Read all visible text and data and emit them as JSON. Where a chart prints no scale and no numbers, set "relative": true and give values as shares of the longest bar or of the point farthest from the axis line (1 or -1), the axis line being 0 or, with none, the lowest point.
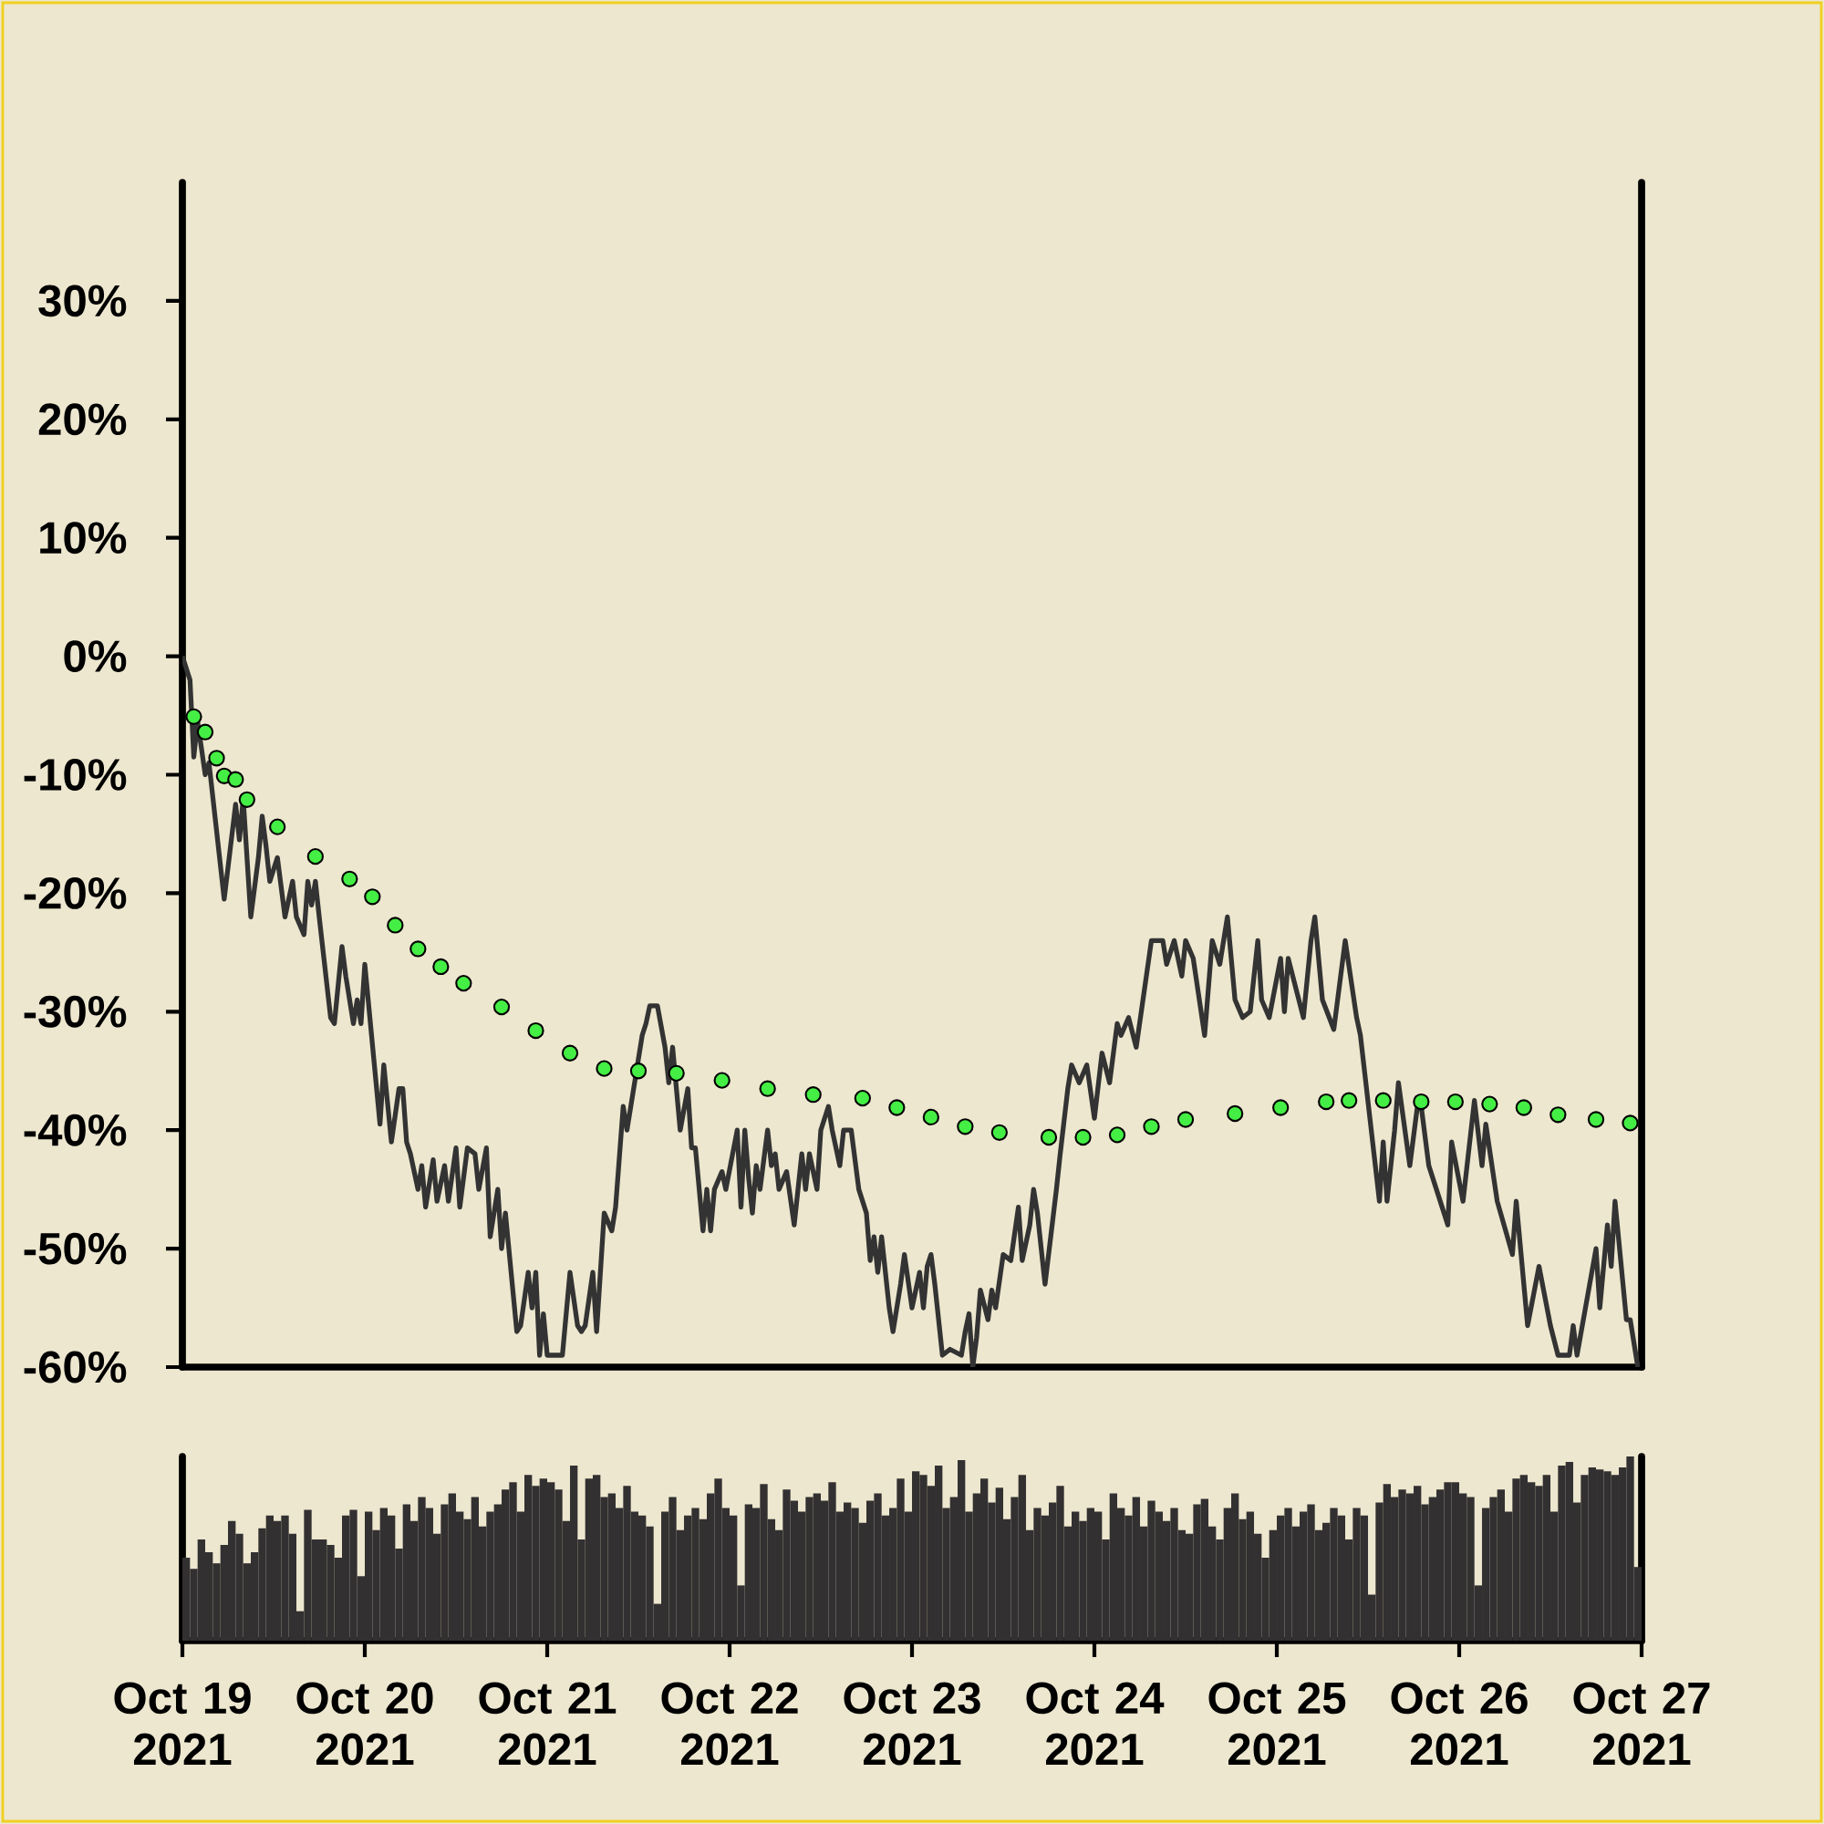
{
  "chart_data": [
    {
      "type": "line",
      "xlim": [
        "2021-10-19",
        "2021-10-27"
      ],
      "ylim": [
        -60,
        40
      ],
      "tick_labels": "y",
      "yticks": [
        {
          "value": -60,
          "label": "-60%"
        },
        {
          "value": -50,
          "label": "-50%"
        },
        {
          "value": -40,
          "label": "-40%"
        },
        {
          "value": -30,
          "label": "-30%"
        },
        {
          "value": -20,
          "label": "-20%"
        },
        {
          "value": -10,
          "label": "-10%"
        },
        {
          "value": 0,
          "label": "0%"
        },
        {
          "value": 10,
          "label": "10%"
        },
        {
          "value": 20,
          "label": "20%"
        },
        {
          "value": 30,
          "label": "30%"
        }
      ],
      "series": [
        {
          "type": "line",
          "color": "#333333",
          "x": [
            "2021-10-19T00:00",
            "2021-10-19T01:00",
            "2021-10-19T01:30",
            "2021-10-19T02:00",
            "2021-10-19T03:00",
            "2021-10-19T03:30",
            "2021-10-19T05:30",
            "2021-10-19T07:00",
            "2021-10-19T07:30",
            "2021-10-19T08:00",
            "2021-10-19T09:00",
            "2021-10-19T10:00",
            "2021-10-19T10:30",
            "2021-10-19T11:00",
            "2021-10-19T11:30",
            "2021-10-19T12:30",
            "2021-10-19T13:30",
            "2021-10-19T14:30",
            "2021-10-19T15:00",
            "2021-10-19T16:00",
            "2021-10-19T16:30",
            "2021-10-19T17:00",
            "2021-10-19T17:30",
            "2021-10-19T18:00",
            "2021-10-19T19:30",
            "2021-10-19T20:00",
            "2021-10-19T21:00",
            "2021-10-19T21:30",
            "2021-10-19T22:30",
            "2021-10-19T23:00",
            "2021-10-19T23:30",
            "2021-10-20T00:00",
            "2021-10-20T02:00",
            "2021-10-20T02:30",
            "2021-10-20T03:30",
            "2021-10-20T04:30",
            "2021-10-20T05:00",
            "2021-10-20T05:30",
            "2021-10-20T06:00",
            "2021-10-20T07:00",
            "2021-10-20T07:30",
            "2021-10-20T08:00",
            "2021-10-20T09:00",
            "2021-10-20T09:30",
            "2021-10-20T10:30",
            "2021-10-20T11:00",
            "2021-10-20T12:00",
            "2021-10-20T12:30",
            "2021-10-20T13:30",
            "2021-10-20T14:30",
            "2021-10-20T15:00",
            "2021-10-20T16:00",
            "2021-10-20T16:30",
            "2021-10-20T17:30",
            "2021-10-20T18:00",
            "2021-10-20T18:30",
            "2021-10-20T20:00",
            "2021-10-20T20:30",
            "2021-10-20T21:30",
            "2021-10-20T22:00",
            "2021-10-20T22:30",
            "2021-10-20T23:00",
            "2021-10-20T23:30",
            "2021-10-21T00:00",
            "2021-10-21T02:00",
            "2021-10-21T03:00",
            "2021-10-21T04:00",
            "2021-10-21T04:30",
            "2021-10-21T05:00",
            "2021-10-21T06:00",
            "2021-10-21T06:30",
            "2021-10-21T07:30",
            "2021-10-21T08:30",
            "2021-10-21T09:00",
            "2021-10-21T10:00",
            "2021-10-21T10:30",
            "2021-10-21T12:30",
            "2021-10-21T13:00",
            "2021-10-21T13:30",
            "2021-10-21T14:30",
            "2021-10-21T15:30",
            "2021-10-21T16:00",
            "2021-10-21T16:30",
            "2021-10-21T17:00",
            "2021-10-21T17:30",
            "2021-10-21T18:30",
            "2021-10-21T19:00",
            "2021-10-21T19:30",
            "2021-10-21T20:30",
            "2021-10-21T21:00",
            "2021-10-21T21:30",
            "2021-10-21T22:00",
            "2021-10-21T23:00",
            "2021-10-21T23:30",
            "2021-10-22T01:00",
            "2021-10-22T01:30",
            "2021-10-22T02:00",
            "2021-10-22T02:30",
            "2021-10-22T03:00",
            "2021-10-22T03:30",
            "2021-10-22T04:00",
            "2021-10-22T05:00",
            "2021-10-22T05:30",
            "2021-10-22T06:00",
            "2021-10-22T06:30",
            "2021-10-22T07:30",
            "2021-10-22T08:30",
            "2021-10-22T09:30",
            "2021-10-22T10:00",
            "2021-10-22T10:30",
            "2021-10-22T11:30",
            "2021-10-22T12:00",
            "2021-10-22T13:00",
            "2021-10-22T13:30",
            "2021-10-22T14:30",
            "2021-10-22T15:00",
            "2021-10-22T16:00",
            "2021-10-22T17:00",
            "2021-10-22T18:00",
            "2021-10-22T18:30",
            "2021-10-22T19:00",
            "2021-10-22T19:30",
            "2021-10-22T20:00",
            "2021-10-22T21:00",
            "2021-10-22T21:30",
            "2021-10-22T22:30",
            "2021-10-22T23:00",
            "2021-10-23T00:00",
            "2021-10-23T01:00",
            "2021-10-23T01:30",
            "2021-10-23T02:00",
            "2021-10-23T02:30",
            "2021-10-23T03:00",
            "2021-10-23T04:00",
            "2021-10-23T05:00",
            "2021-10-23T06:30",
            "2021-10-23T07:00",
            "2021-10-23T07:30",
            "2021-10-23T08:00",
            "2021-10-23T08:30",
            "2021-10-23T09:00",
            "2021-10-23T10:00",
            "2021-10-23T10:30",
            "2021-10-23T11:00",
            "2021-10-23T12:00",
            "2021-10-23T13:00",
            "2021-10-23T14:00",
            "2021-10-23T14:30",
            "2021-10-23T15:30",
            "2021-10-23T16:00",
            "2021-10-23T16:30",
            "2021-10-23T17:30",
            "2021-10-23T19:00",
            "2021-10-23T19:30",
            "2021-10-23T20:30",
            "2021-10-23T21:00",
            "2021-10-23T22:00",
            "2021-10-23T23:00",
            "2021-10-24T00:00",
            "2021-10-24T01:00",
            "2021-10-24T02:00",
            "2021-10-24T03:00",
            "2021-10-24T03:30",
            "2021-10-24T04:30",
            "2021-10-24T05:30",
            "2021-10-24T07:30",
            "2021-10-24T09:00",
            "2021-10-24T09:30",
            "2021-10-24T10:30",
            "2021-10-24T11:30",
            "2021-10-24T12:00",
            "2021-10-24T13:00",
            "2021-10-24T14:30",
            "2021-10-24T15:30",
            "2021-10-24T16:30",
            "2021-10-24T17:30",
            "2021-10-24T18:30",
            "2021-10-24T19:30",
            "2021-10-24T20:30",
            "2021-10-24T21:30",
            "2021-10-24T22:00",
            "2021-10-24T23:00",
            "2021-10-25T00:30",
            "2021-10-25T01:00",
            "2021-10-25T01:30",
            "2021-10-25T03:30",
            "2021-10-25T04:30",
            "2021-10-25T05:00",
            "2021-10-25T06:00",
            "2021-10-25T07:30",
            "2021-10-25T09:00",
            "2021-10-25T10:30",
            "2021-10-25T11:00",
            "2021-10-25T13:30",
            "2021-10-25T14:00",
            "2021-10-25T14:30",
            "2021-10-25T15:30",
            "2021-10-25T16:00",
            "2021-10-25T17:30",
            "2021-10-25T18:30",
            "2021-10-25T19:00",
            "2021-10-25T20:00",
            "2021-10-25T21:00",
            "2021-10-25T22:30",
            "2021-10-25T23:00",
            "2021-10-26T00:30",
            "2021-10-26T02:00",
            "2021-10-26T03:00",
            "2021-10-26T03:30",
            "2021-10-26T05:00",
            "2021-10-26T07:00",
            "2021-10-26T07:30",
            "2021-10-26T09:00",
            "2021-10-26T10:30",
            "2021-10-26T12:00",
            "2021-10-26T13:00",
            "2021-10-26T14:30",
            "2021-10-26T15:00",
            "2021-10-26T15:30",
            "2021-10-26T18:00",
            "2021-10-26T18:30",
            "2021-10-26T19:30",
            "2021-10-26T20:00",
            "2021-10-26T20:30",
            "2021-10-26T22:00",
            "2021-10-26T22:30",
            "2021-10-26T23:30"
          ],
          "values": [
            0,
            -2,
            -8.5,
            -5.5,
            -10,
            -9,
            -20.5,
            -12.5,
            -15.5,
            -12,
            -22,
            -17,
            -13.5,
            -16,
            -19,
            -17,
            -22,
            -19,
            -22,
            -23.5,
            -19,
            -21,
            -19,
            -22,
            -30.5,
            -31,
            -24.5,
            -27,
            -31,
            -29,
            -31,
            -26,
            -39.5,
            -34.5,
            -41,
            -36.5,
            -36.5,
            -41,
            -42,
            -45,
            -43,
            -46.5,
            -42.5,
            -46,
            -43,
            -46,
            -41.5,
            -46.5,
            -41.5,
            -42,
            -45,
            -41.5,
            -49,
            -45,
            -50,
            -47,
            -57,
            -56.5,
            -52,
            -55,
            -52,
            -59,
            -55.5,
            -59,
            -59,
            -52,
            -56.5,
            -57,
            -56.5,
            -52,
            -57,
            -47,
            -48.5,
            -46.5,
            -38,
            -40,
            -32,
            -31,
            -29.5,
            -29.5,
            -33,
            -36,
            -33,
            -36.5,
            -40,
            -36.5,
            -41.5,
            -41.5,
            -48.5,
            -45,
            -48.5,
            -45,
            -43.5,
            -45,
            -40,
            -46.5,
            -40,
            -44,
            -47,
            -43,
            -45,
            -40,
            -43,
            -42,
            -45,
            -43.5,
            -48,
            -42,
            -45,
            -42,
            -45,
            -40,
            -38,
            -40,
            -43,
            -40,
            -40,
            -45,
            -47,
            -51,
            -49,
            -52,
            -49,
            -55,
            -57,
            -53,
            -50.5,
            -55,
            -52,
            -55,
            -51.5,
            -50.5,
            -53,
            -59,
            -58.5,
            -59,
            -57,
            -55.5,
            -60,
            -57.5,
            -53.5,
            -56,
            -53.5,
            -55,
            -50.5,
            -51,
            -46.5,
            -51,
            -48,
            -45,
            -47,
            -53,
            -45,
            -42,
            -36.5,
            -34.5,
            -36,
            -34.5,
            -39,
            -33.5,
            -36,
            -31,
            -32,
            -30.5,
            -33,
            -24,
            -24,
            -26,
            -24,
            -27,
            -24,
            -25.5,
            -32,
            -24,
            -26,
            -22,
            -29,
            -30.5,
            -30,
            -24,
            -29,
            -30.5,
            -25.5,
            -30,
            -25.5,
            -30.5,
            -24,
            -22,
            -29,
            -31.5,
            -24,
            -30.5,
            -32,
            -46,
            -41,
            -46,
            -40,
            -36,
            -43,
            -38,
            -38,
            -43,
            -45,
            -48,
            -41,
            -46,
            -37.5,
            -43,
            -39.5,
            -46,
            -50.5,
            -46,
            -56.5,
            -51.5,
            -56.5,
            -59,
            -59,
            -56.5,
            -59,
            -50,
            -55,
            -48,
            -51.5,
            -46,
            -56,
            -56,
            -60
          ]
        },
        {
          "type": "scatter",
          "marker": "circle",
          "color": "#44ee44",
          "x": [
            "2021-10-19T01:30",
            "2021-10-19T03:00",
            "2021-10-19T04:30",
            "2021-10-19T05:30",
            "2021-10-19T07:00",
            "2021-10-19T08:30",
            "2021-10-19T12:30",
            "2021-10-19T17:30",
            "2021-10-19T22:00",
            "2021-10-20T01:00",
            "2021-10-20T04:00",
            "2021-10-20T07:00",
            "2021-10-20T10:00",
            "2021-10-20T13:00",
            "2021-10-20T18:00",
            "2021-10-20T22:30",
            "2021-10-21T03:00",
            "2021-10-21T07:30",
            "2021-10-21T12:00",
            "2021-10-21T17:00",
            "2021-10-21T23:00",
            "2021-10-22T05:00",
            "2021-10-22T11:00",
            "2021-10-22T17:30",
            "2021-10-22T22:00",
            "2021-10-23T02:30",
            "2021-10-23T07:00",
            "2021-10-23T11:30",
            "2021-10-23T18:00",
            "2021-10-23T22:30",
            "2021-10-24T03:00",
            "2021-10-24T07:30",
            "2021-10-24T12:00",
            "2021-10-24T18:30",
            "2021-10-25T00:30",
            "2021-10-25T06:30",
            "2021-10-25T09:30",
            "2021-10-25T14:00",
            "2021-10-25T19:00",
            "2021-10-25T23:30",
            "2021-10-26T04:00",
            "2021-10-26T08:30",
            "2021-10-26T13:00",
            "2021-10-26T18:00",
            "2021-10-26T22:30"
          ],
          "values": [
            -5.1,
            -6.4,
            -8.6,
            -10.1,
            -10.4,
            -12.1,
            -14.4,
            -16.9,
            -18.8,
            -20.3,
            -22.7,
            -24.7,
            -26.2,
            -27.6,
            -29.6,
            -31.6,
            -33.5,
            -34.8,
            -35,
            -35.2,
            -35.8,
            -36.5,
            -37,
            -37.3,
            -38.1,
            -38.9,
            -39.7,
            -40.2,
            -40.6,
            -40.6,
            -40.4,
            -39.7,
            -39.1,
            -38.6,
            -38.1,
            -37.6,
            -37.5,
            -37.5,
            -37.6,
            -37.6,
            -37.8,
            -38.1,
            -38.7,
            -39.1,
            -39.4
          ]
        }
      ]
    },
    {
      "type": "bar",
      "relative": true,
      "color": "#333031",
      "xlim": [
        "2021-10-19",
        "2021-10-27"
      ],
      "tick_labels": "x",
      "xticks": [
        {
          "value": "2021-10-19",
          "label": "Oct 19 2021"
        },
        {
          "value": "2021-10-20",
          "label": "Oct 20 2021"
        },
        {
          "value": "2021-10-21",
          "label": "Oct 21 2021"
        },
        {
          "value": "2021-10-22",
          "label": "Oct 22 2021"
        },
        {
          "value": "2021-10-23",
          "label": "Oct 23 2021"
        },
        {
          "value": "2021-10-24",
          "label": "Oct 24 2021"
        },
        {
          "value": "2021-10-25",
          "label": "Oct 25 2021"
        },
        {
          "value": "2021-10-26",
          "label": "Oct 26 2021"
        },
        {
          "value": "2021-10-27",
          "label": "Oct 27 2021"
        }
      ],
      "x": [
        "2021-10-19T00:30",
        "2021-10-19T01:30",
        "2021-10-19T02:30",
        "2021-10-19T03:30",
        "2021-10-19T04:30",
        "2021-10-19T05:30",
        "2021-10-19T06:30",
        "2021-10-19T07:30",
        "2021-10-19T08:30",
        "2021-10-19T09:30",
        "2021-10-19T10:30",
        "2021-10-19T11:30",
        "2021-10-19T12:30",
        "2021-10-19T13:30",
        "2021-10-19T14:30",
        "2021-10-19T15:30",
        "2021-10-19T16:30",
        "2021-10-19T17:30",
        "2021-10-19T18:30",
        "2021-10-19T19:30",
        "2021-10-19T20:30",
        "2021-10-19T21:30",
        "2021-10-19T22:30",
        "2021-10-19T23:30",
        "2021-10-20T00:30",
        "2021-10-20T01:30",
        "2021-10-20T02:30",
        "2021-10-20T03:30",
        "2021-10-20T04:30",
        "2021-10-20T05:30",
        "2021-10-20T06:30",
        "2021-10-20T07:30",
        "2021-10-20T08:30",
        "2021-10-20T09:30",
        "2021-10-20T10:30",
        "2021-10-20T11:30",
        "2021-10-20T12:30",
        "2021-10-20T13:30",
        "2021-10-20T14:30",
        "2021-10-20T15:30",
        "2021-10-20T16:30",
        "2021-10-20T17:30",
        "2021-10-20T18:30",
        "2021-10-20T19:30",
        "2021-10-20T20:30",
        "2021-10-20T21:30",
        "2021-10-20T22:30",
        "2021-10-20T23:30",
        "2021-10-21T00:30",
        "2021-10-21T01:30",
        "2021-10-21T02:30",
        "2021-10-21T03:30",
        "2021-10-21T04:30",
        "2021-10-21T05:30",
        "2021-10-21T06:30",
        "2021-10-21T07:30",
        "2021-10-21T08:30",
        "2021-10-21T09:30",
        "2021-10-21T10:30",
        "2021-10-21T11:30",
        "2021-10-21T12:30",
        "2021-10-21T13:30",
        "2021-10-21T14:30",
        "2021-10-21T15:30",
        "2021-10-21T16:30",
        "2021-10-21T17:30",
        "2021-10-21T18:30",
        "2021-10-21T19:30",
        "2021-10-21T20:30",
        "2021-10-21T21:30",
        "2021-10-21T22:30",
        "2021-10-21T23:30",
        "2021-10-22T00:30",
        "2021-10-22T01:30",
        "2021-10-22T02:30",
        "2021-10-22T03:30",
        "2021-10-22T04:30",
        "2021-10-22T05:30",
        "2021-10-22T06:30",
        "2021-10-22T07:30",
        "2021-10-22T08:30",
        "2021-10-22T09:30",
        "2021-10-22T10:30",
        "2021-10-22T11:30",
        "2021-10-22T12:30",
        "2021-10-22T13:30",
        "2021-10-22T14:30",
        "2021-10-22T15:30",
        "2021-10-22T16:30",
        "2021-10-22T17:30",
        "2021-10-22T18:30",
        "2021-10-22T19:30",
        "2021-10-22T20:30",
        "2021-10-22T21:30",
        "2021-10-22T22:30",
        "2021-10-22T23:30",
        "2021-10-23T00:30",
        "2021-10-23T01:30",
        "2021-10-23T02:30",
        "2021-10-23T03:30",
        "2021-10-23T04:30",
        "2021-10-23T05:30",
        "2021-10-23T06:30",
        "2021-10-23T07:30",
        "2021-10-23T08:30",
        "2021-10-23T09:30",
        "2021-10-23T10:30",
        "2021-10-23T11:30",
        "2021-10-23T12:30",
        "2021-10-23T13:30",
        "2021-10-23T14:30",
        "2021-10-23T15:30",
        "2021-10-23T16:30",
        "2021-10-23T17:30",
        "2021-10-23T18:30",
        "2021-10-23T19:30",
        "2021-10-23T20:30",
        "2021-10-23T21:30",
        "2021-10-23T22:30",
        "2021-10-23T23:30",
        "2021-10-24T00:30",
        "2021-10-24T01:30",
        "2021-10-24T02:30",
        "2021-10-24T03:30",
        "2021-10-24T04:30",
        "2021-10-24T05:30",
        "2021-10-24T06:30",
        "2021-10-24T07:30",
        "2021-10-24T08:30",
        "2021-10-24T09:30",
        "2021-10-24T10:30",
        "2021-10-24T11:30",
        "2021-10-24T12:30",
        "2021-10-24T13:30",
        "2021-10-24T14:30",
        "2021-10-24T15:30",
        "2021-10-24T16:30",
        "2021-10-24T17:30",
        "2021-10-24T18:30",
        "2021-10-24T19:30",
        "2021-10-24T20:30",
        "2021-10-24T21:30",
        "2021-10-24T22:30",
        "2021-10-24T23:30",
        "2021-10-25T00:30",
        "2021-10-25T01:30",
        "2021-10-25T02:30",
        "2021-10-25T03:30",
        "2021-10-25T04:30",
        "2021-10-25T05:30",
        "2021-10-25T06:30",
        "2021-10-25T07:30",
        "2021-10-25T08:30",
        "2021-10-25T09:30",
        "2021-10-25T10:30",
        "2021-10-25T11:30",
        "2021-10-25T12:30",
        "2021-10-25T13:30",
        "2021-10-25T14:30",
        "2021-10-25T15:30",
        "2021-10-25T16:30",
        "2021-10-25T17:30",
        "2021-10-25T18:30",
        "2021-10-25T19:30",
        "2021-10-25T20:30",
        "2021-10-25T21:30",
        "2021-10-25T22:30",
        "2021-10-25T23:30",
        "2021-10-26T00:30",
        "2021-10-26T01:30",
        "2021-10-26T02:30",
        "2021-10-26T03:30",
        "2021-10-26T04:30",
        "2021-10-26T05:30",
        "2021-10-26T06:30",
        "2021-10-26T07:30",
        "2021-10-26T08:30",
        "2021-10-26T09:30",
        "2021-10-26T10:30",
        "2021-10-26T11:30",
        "2021-10-26T12:30",
        "2021-10-26T13:30",
        "2021-10-26T14:30",
        "2021-10-26T15:30",
        "2021-10-26T16:30",
        "2021-10-26T17:30",
        "2021-10-26T18:30",
        "2021-10-26T19:30",
        "2021-10-26T20:30",
        "2021-10-26T21:30",
        "2021-10-26T22:30",
        "2021-10-26T23:30"
      ],
      "values": [
        0.45,
        0.39,
        0.55,
        0.48,
        0.42,
        0.52,
        0.65,
        0.58,
        0.42,
        0.48,
        0.61,
        0.68,
        0.65,
        0.68,
        0.58,
        0.16,
        0.71,
        0.55,
        0.55,
        0.52,
        0.45,
        0.68,
        0.71,
        0.35,
        0.7,
        0.6,
        0.72,
        0.68,
        0.5,
        0.74,
        0.65,
        0.78,
        0.72,
        0.58,
        0.74,
        0.8,
        0.7,
        0.66,
        0.78,
        0.62,
        0.7,
        0.74,
        0.82,
        0.86,
        0.7,
        0.9,
        0.84,
        0.88,
        0.86,
        0.82,
        0.65,
        0.95,
        0.55,
        0.88,
        0.9,
        0.78,
        0.8,
        0.72,
        0.84,
        0.7,
        0.68,
        0.62,
        0.2,
        0.7,
        0.78,
        0.6,
        0.68,
        0.72,
        0.66,
        0.8,
        0.88,
        0.72,
        0.68,
        0.3,
        0.74,
        0.72,
        0.85,
        0.66,
        0.6,
        0.82,
        0.76,
        0.7,
        0.78,
        0.8,
        0.76,
        0.86,
        0.7,
        0.75,
        0.72,
        0.64,
        0.76,
        0.8,
        0.68,
        0.72,
        0.88,
        0.7,
        0.92,
        0.9,
        0.84,
        0.95,
        0.72,
        0.78,
        0.98,
        0.7,
        0.8,
        0.88,
        0.75,
        0.83,
        0.66,
        0.78,
        0.9,
        0.6,
        0.72,
        0.68,
        0.75,
        0.84,
        0.62,
        0.7,
        0.65,
        0.72,
        0.7,
        0.55,
        0.8,
        0.72,
        0.68,
        0.78,
        0.62,
        0.76,
        0.7,
        0.65,
        0.72,
        0.6,
        0.58,
        0.74,
        0.77,
        0.62,
        0.55,
        0.72,
        0.8,
        0.66,
        0.7,
        0.58,
        0.45,
        0.6,
        0.68,
        0.72,
        0.62,
        0.7,
        0.74,
        0.6,
        0.64,
        0.72,
        0.68,
        0.55,
        0.72,
        0.68,
        0.25,
        0.75,
        0.85,
        0.78,
        0.82,
        0.8,
        0.84,
        0.74,
        0.78,
        0.82,
        0.86,
        0.86,
        0.8,
        0.78,
        0.3,
        0.72,
        0.78,
        0.82,
        0.7,
        0.88,
        0.9,
        0.86,
        0.84,
        0.9,
        0.7,
        0.95,
        0.97,
        0.75,
        0.9,
        0.94,
        0.93,
        0.92,
        0.9,
        0.94,
        1.0,
        0.4
      ]
    }
  ]
}
